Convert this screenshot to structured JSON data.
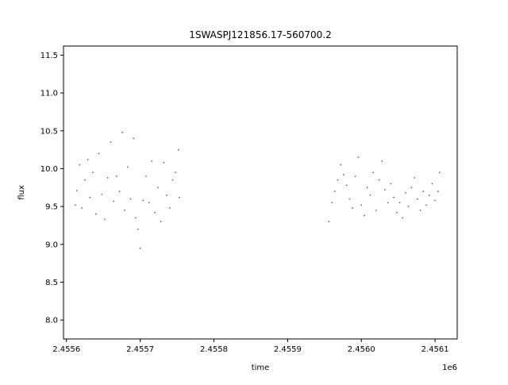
{
  "chart_data": {
    "type": "scatter",
    "title": "1SWASPJ121856.17-560700.2",
    "xlabel": "time",
    "ylabel": "flux",
    "x_offset_label": "1e6",
    "xlim": [
      2455596,
      2456130
    ],
    "ylim": [
      7.75,
      11.62
    ],
    "x_ticks": [
      2455600,
      2455700,
      2455800,
      2455900,
      2456000,
      2456100
    ],
    "x_tick_labels": [
      "2.4556",
      "2.4557",
      "2.4558",
      "2.4559",
      "2.4560",
      "2.4561"
    ],
    "y_ticks": [
      8.0,
      8.5,
      9.0,
      9.5,
      10.0,
      10.5,
      11.0,
      11.5
    ],
    "y_tick_labels": [
      "8.0",
      "8.5",
      "9.0",
      "9.5",
      "10.0",
      "10.5",
      "11.0",
      "11.5"
    ],
    "grid": false,
    "marker_color": "#1f77b4",
    "series": [
      {
        "values": [
          [
            2455612,
            9.52
          ],
          [
            2455614,
            9.71
          ],
          [
            2455618,
            10.05
          ],
          [
            2455621,
            9.48
          ],
          [
            2455625,
            9.85
          ],
          [
            2455629,
            10.12
          ],
          [
            2455632,
            9.62
          ],
          [
            2455636,
            9.95
          ],
          [
            2455640,
            9.4
          ],
          [
            2455644,
            10.2
          ],
          [
            2455648,
            9.66
          ],
          [
            2455652,
            9.33
          ],
          [
            2455656,
            9.88
          ],
          [
            2455660,
            10.35
          ],
          [
            2455664,
            9.57
          ],
          [
            2455668,
            9.9
          ],
          [
            2455672,
            9.7
          ],
          [
            2455676,
            10.48
          ],
          [
            2455679,
            9.45
          ],
          [
            2455683,
            10.02
          ],
          [
            2455687,
            9.6
          ],
          [
            2455691,
            10.4
          ],
          [
            2455694,
            9.35
          ],
          [
            2455697,
            9.2
          ],
          [
            2455700,
            8.95
          ],
          [
            2455704,
            9.58
          ],
          [
            2455708,
            9.9
          ],
          [
            2455712,
            9.55
          ],
          [
            2455716,
            10.1
          ],
          [
            2455720,
            9.42
          ],
          [
            2455724,
            9.75
          ],
          [
            2455728,
            9.3
          ],
          [
            2455732,
            10.08
          ],
          [
            2455736,
            9.65
          ],
          [
            2455740,
            9.48
          ],
          [
            2455744,
            9.85
          ],
          [
            2455748,
            9.95
          ],
          [
            2455752,
            10.25
          ],
          [
            2455753,
            9.62
          ],
          [
            2455956,
            9.3
          ],
          [
            2455960,
            9.55
          ],
          [
            2455964,
            9.7
          ],
          [
            2455968,
            9.85
          ],
          [
            2455972,
            10.05
          ],
          [
            2455976,
            9.92
          ],
          [
            2455980,
            9.78
          ],
          [
            2455984,
            9.6
          ],
          [
            2455988,
            9.48
          ],
          [
            2455992,
            9.9
          ],
          [
            2455996,
            10.15
          ],
          [
            2456000,
            9.52
          ],
          [
            2456004,
            9.38
          ],
          [
            2456008,
            9.75
          ],
          [
            2456012,
            9.65
          ],
          [
            2456016,
            9.95
          ],
          [
            2456020,
            9.45
          ],
          [
            2456024,
            9.85
          ],
          [
            2456028,
            10.1
          ],
          [
            2456032,
            9.72
          ],
          [
            2456036,
            9.55
          ],
          [
            2456040,
            9.8
          ],
          [
            2456044,
            9.62
          ],
          [
            2456048,
            9.42
          ],
          [
            2456052,
            9.55
          ],
          [
            2456056,
            9.35
          ],
          [
            2456060,
            9.68
          ],
          [
            2456064,
            9.5
          ],
          [
            2456068,
            9.75
          ],
          [
            2456072,
            9.88
          ],
          [
            2456076,
            9.6
          ],
          [
            2456080,
            9.45
          ],
          [
            2456084,
            9.7
          ],
          [
            2456088,
            9.52
          ],
          [
            2456092,
            9.65
          ],
          [
            2456096,
            9.8
          ],
          [
            2456100,
            9.58
          ],
          [
            2456104,
            9.7
          ],
          [
            2456106,
            9.95
          ]
        ]
      }
    ]
  }
}
